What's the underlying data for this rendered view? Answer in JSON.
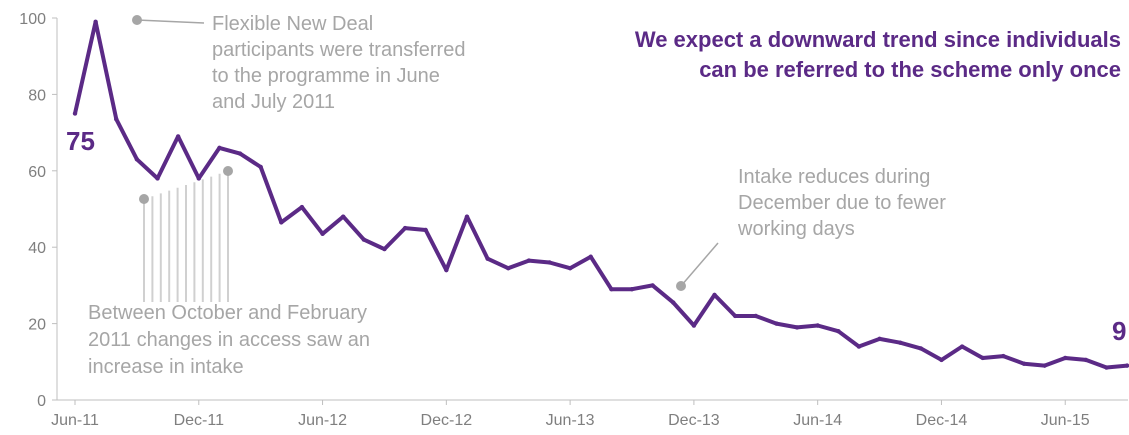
{
  "chart_data": {
    "type": "line",
    "x": [
      "Jun-11",
      "Jul-11",
      "Aug-11",
      "Sep-11",
      "Oct-11",
      "Nov-11",
      "Dec-11",
      "Jan-12",
      "Feb-12",
      "Mar-12",
      "Apr-12",
      "May-12",
      "Jun-12",
      "Jul-12",
      "Aug-12",
      "Sep-12",
      "Oct-12",
      "Nov-12",
      "Dec-12",
      "Jan-13",
      "Feb-13",
      "Mar-13",
      "Apr-13",
      "May-13",
      "Jun-13",
      "Jul-13",
      "Aug-13",
      "Sep-13",
      "Oct-13",
      "Nov-13",
      "Dec-13",
      "Jan-14",
      "Feb-14",
      "Mar-14",
      "Apr-14",
      "May-14",
      "Jun-14",
      "Jul-14",
      "Aug-14",
      "Sep-14",
      "Oct-14",
      "Nov-14",
      "Dec-14",
      "Jan-15",
      "Feb-15",
      "Mar-15",
      "Apr-15",
      "May-15",
      "Jun-15",
      "Jul-15",
      "Aug-15",
      "Sep-15"
    ],
    "series": [
      {
        "values": [
          75,
          99,
          73.5,
          63,
          58,
          69,
          58,
          66,
          64.5,
          61,
          46.5,
          50.5,
          43.5,
          48,
          42,
          39.5,
          45,
          44.5,
          34,
          48,
          37,
          34.5,
          36.5,
          36,
          34.5,
          37.5,
          29,
          29,
          30,
          25.5,
          19.5,
          27.5,
          22,
          22,
          20,
          19,
          19.5,
          18,
          14,
          16,
          15,
          13.5,
          10.5,
          14,
          11,
          11.5,
          9.5,
          9,
          11,
          10.5,
          8.5,
          9
        ]
      }
    ],
    "x_tick_labels": [
      "Jun-11",
      "Dec-11",
      "Jun-12",
      "Dec-12",
      "Jun-13",
      "Dec-13",
      "Jun-14",
      "Dec-14",
      "Jun-15"
    ],
    "y_ticks": [
      "0",
      "20",
      "40",
      "60",
      "80",
      "100"
    ],
    "ylim": [
      0,
      100
    ],
    "grid": false,
    "legend": "none",
    "color": "#5b2a86",
    "start_label": "75",
    "end_label": "9",
    "headline": [
      "We expect a downward trend since individuals",
      "can be referred to the scheme only once"
    ],
    "annotations": {
      "flexible_new_deal": [
        "Flexible New Deal",
        "participants were transferred",
        "to the programme in June",
        "and July 2011"
      ],
      "december_intake": [
        "Intake reduces during",
        "December due to fewer",
        "working days"
      ],
      "between_october": [
        "Between  October and February",
        "2011 changes in access saw an",
        "increase in intake"
      ]
    }
  }
}
